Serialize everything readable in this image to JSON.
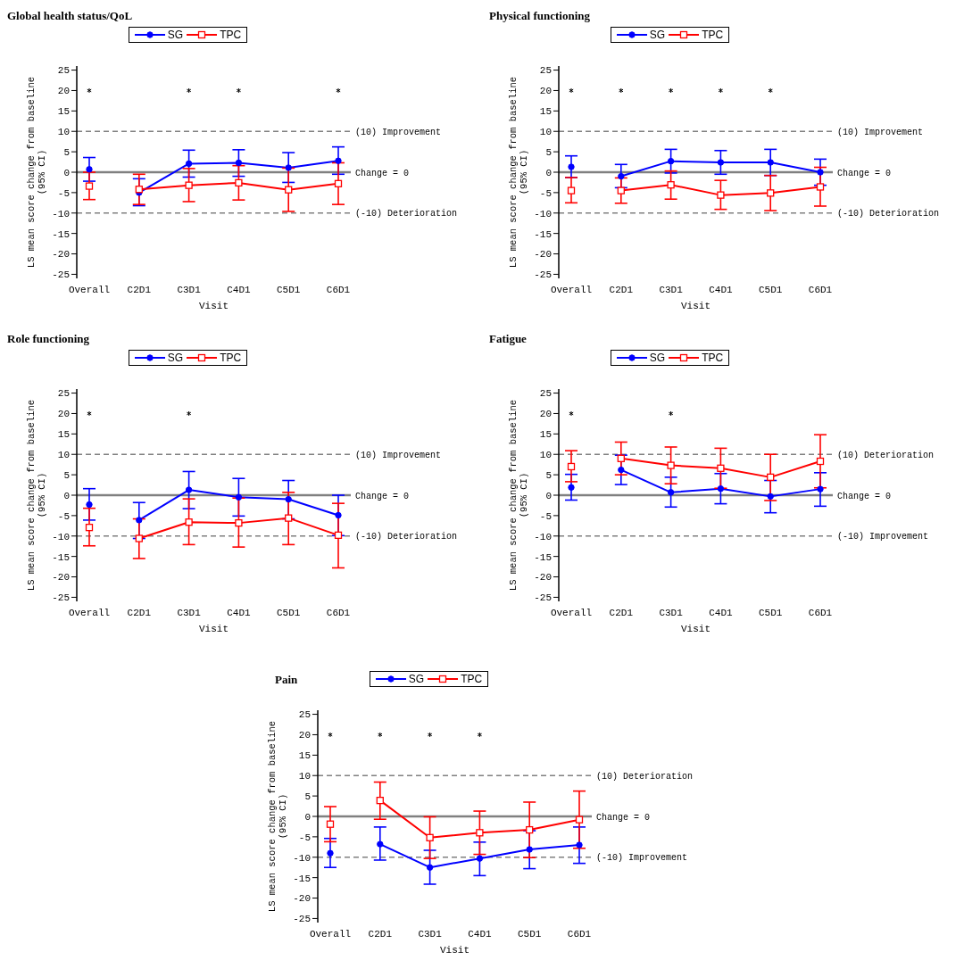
{
  "chart_data": [
    {
      "type": "line",
      "title": "Global health status/QoL",
      "xlabel": "Visit",
      "ylabel": "LS mean score change from baseline\n(95% CI)",
      "categories": [
        "Overall",
        "C2D1",
        "C3D1",
        "C4D1",
        "C5D1",
        "C6D1"
      ],
      "ylim": [
        -26,
        26
      ],
      "yticks": [
        -25,
        -20,
        -15,
        -10,
        -5,
        0,
        5,
        10,
        15,
        20,
        25
      ],
      "legend": "top",
      "grid": false,
      "series": [
        {
          "name": "SG",
          "type": "line",
          "color": "#0000ff",
          "marker": "circle",
          "values": [
            null,
            -5.0,
            2.1,
            2.3,
            1.1,
            2.8
          ],
          "errors": [
            null,
            [
              -8.2,
              -1.6
            ],
            [
              -1.2,
              5.4
            ],
            [
              -1.0,
              5.5
            ],
            [
              -2.5,
              4.8
            ],
            [
              -0.5,
              6.2
            ]
          ]
        },
        {
          "name": "TPC",
          "type": "line",
          "color": "#ff0000",
          "marker": "square",
          "values": [
            null,
            -4.2,
            -3.2,
            -2.6,
            -4.3,
            -2.8
          ],
          "errors": [
            null,
            [
              -7.9,
              -0.5
            ],
            [
              -7.2,
              0.9
            ],
            [
              -6.8,
              1.6
            ],
            [
              -9.6,
              1.0
            ],
            [
              -7.9,
              2.3
            ]
          ]
        },
        {
          "type": "scatter",
          "color": "#0000ff",
          "marker": "circle",
          "values": [
            0.7,
            null,
            null,
            null,
            null,
            null
          ],
          "errors": [
            [
              -2.2,
              3.6
            ],
            null,
            null,
            null,
            null,
            null
          ]
        },
        {
          "type": "scatter",
          "color": "#ff0000",
          "marker": "square",
          "values": [
            -3.4,
            null,
            null,
            null,
            null,
            null
          ],
          "errors": [
            [
              -6.7,
              0
            ],
            null,
            null,
            null,
            null,
            null
          ]
        },
        {
          "type": "scatter",
          "color": "#000000",
          "marker": "cross",
          "values": [
            20,
            null,
            20,
            20,
            null,
            20
          ]
        }
      ],
      "ref_lines": [
        {
          "axis": "y",
          "value": 10,
          "label": "(10) Improvement",
          "color": "#808080",
          "line_style": "dashed"
        },
        {
          "axis": "y",
          "value": 0,
          "label": "Change = 0",
          "color": "#808080",
          "line_style": "solid"
        },
        {
          "axis": "y",
          "value": -10,
          "label": "(-10) Deterioration",
          "color": "#808080",
          "line_style": "dashed"
        }
      ]
    },
    {
      "type": "line",
      "title": "Physical functioning",
      "xlabel": "Visit",
      "ylabel": "LS mean score change from baseline\n(95% CI)",
      "categories": [
        "Overall",
        "C2D1",
        "C3D1",
        "C4D1",
        "C5D1",
        "C6D1"
      ],
      "ylim": [
        -26,
        26
      ],
      "yticks": [
        -25,
        -20,
        -15,
        -10,
        -5,
        0,
        5,
        10,
        15,
        20,
        25
      ],
      "legend": "top",
      "grid": false,
      "series": [
        {
          "name": "SG",
          "type": "line",
          "color": "#0000ff",
          "marker": "circle",
          "values": [
            null,
            -1.0,
            2.7,
            2.4,
            2.4,
            0
          ],
          "errors": [
            null,
            [
              -3.8,
              1.9
            ],
            [
              -0.2,
              5.6
            ],
            [
              -0.5,
              5.3
            ],
            [
              -0.8,
              5.6
            ],
            [
              -3.2,
              3.2
            ]
          ]
        },
        {
          "name": "TPC",
          "type": "line",
          "color": "#ff0000",
          "marker": "square",
          "values": [
            null,
            -4.5,
            -3.1,
            -5.6,
            -5.1,
            -3.6
          ],
          "errors": [
            null,
            [
              -7.6,
              -1.4
            ],
            [
              -6.6,
              0.3
            ],
            [
              -9.1,
              -2.0
            ],
            [
              -9.4,
              -0.8
            ],
            [
              -8.3,
              1.2
            ]
          ]
        },
        {
          "type": "scatter",
          "color": "#0000ff",
          "marker": "circle",
          "values": [
            1.3,
            null,
            null,
            null,
            null,
            null
          ],
          "errors": [
            [
              -1.3,
              4.0
            ],
            null,
            null,
            null,
            null,
            null
          ]
        },
        {
          "type": "scatter",
          "color": "#ff0000",
          "marker": "square",
          "values": [
            -4.5,
            null,
            null,
            null,
            null,
            null
          ],
          "errors": [
            [
              -7.5,
              -1.3
            ],
            null,
            null,
            null,
            null,
            null
          ]
        },
        {
          "type": "scatter",
          "color": "#000000",
          "marker": "cross",
          "values": [
            20,
            20,
            20,
            20,
            20,
            null
          ]
        }
      ],
      "ref_lines": [
        {
          "axis": "y",
          "value": 10,
          "label": "(10) Improvement",
          "color": "#808080",
          "line_style": "dashed"
        },
        {
          "axis": "y",
          "value": 0,
          "label": "Change = 0",
          "color": "#808080",
          "line_style": "solid"
        },
        {
          "axis": "y",
          "value": -10,
          "label": "(-10) Deterioration",
          "color": "#808080",
          "line_style": "dashed"
        }
      ]
    },
    {
      "type": "line",
      "title": "Role functioning",
      "xlabel": "Visit",
      "ylabel": "LS mean score change from baseline\n(95% CI)",
      "categories": [
        "Overall",
        "C2D1",
        "C3D1",
        "C4D1",
        "C5D1",
        "C6D1"
      ],
      "ylim": [
        -26,
        26
      ],
      "yticks": [
        -25,
        -20,
        -15,
        -10,
        -5,
        0,
        5,
        10,
        15,
        20,
        25
      ],
      "legend": "top",
      "grid": false,
      "series": [
        {
          "name": "SG",
          "type": "line",
          "color": "#0000ff",
          "marker": "circle",
          "values": [
            null,
            -6.1,
            1.3,
            -0.5,
            -1.0,
            -4.9
          ],
          "errors": [
            null,
            [
              -10.6,
              -1.8
            ],
            [
              -3.3,
              5.8
            ],
            [
              -5.1,
              4.1
            ],
            [
              -5.8,
              3.6
            ],
            [
              -9.9,
              0
            ]
          ]
        },
        {
          "name": "TPC",
          "type": "line",
          "color": "#ff0000",
          "marker": "square",
          "values": [
            null,
            -10.6,
            -6.6,
            -6.8,
            -5.6,
            -9.8
          ],
          "errors": [
            null,
            [
              -15.5,
              -5.8
            ],
            [
              -12.1,
              -0.9
            ],
            [
              -12.7,
              -0.7
            ],
            [
              -12.1,
              0.7
            ],
            [
              -17.8,
              -2.0
            ]
          ]
        },
        {
          "type": "scatter",
          "color": "#0000ff",
          "marker": "circle",
          "values": [
            -2.3,
            null,
            null,
            null,
            null,
            null
          ],
          "errors": [
            [
              -6.1,
              1.6
            ],
            null,
            null,
            null,
            null,
            null
          ]
        },
        {
          "type": "scatter",
          "color": "#ff0000",
          "marker": "square",
          "values": [
            -7.9,
            null,
            null,
            null,
            null,
            null
          ],
          "errors": [
            [
              -12.4,
              -3.2
            ],
            null,
            null,
            null,
            null,
            null
          ]
        },
        {
          "type": "scatter",
          "color": "#000000",
          "marker": "cross",
          "values": [
            20,
            null,
            20,
            null,
            null,
            null
          ]
        }
      ],
      "ref_lines": [
        {
          "axis": "y",
          "value": 10,
          "label": "(10) Improvement",
          "color": "#808080",
          "line_style": "dashed"
        },
        {
          "axis": "y",
          "value": 0,
          "label": "Change = 0",
          "color": "#808080",
          "line_style": "solid"
        },
        {
          "axis": "y",
          "value": -10,
          "label": "(-10) Deterioration",
          "color": "#808080",
          "line_style": "dashed"
        }
      ]
    },
    {
      "type": "line",
      "title": "Fatigue",
      "xlabel": "Visit",
      "ylabel": "LS mean score change from baseline\n(95% CI)",
      "categories": [
        "Overall",
        "C2D1",
        "C3D1",
        "C4D1",
        "C5D1",
        "C6D1"
      ],
      "ylim": [
        -26,
        26
      ],
      "yticks": [
        -25,
        -20,
        -15,
        -10,
        -5,
        0,
        5,
        10,
        15,
        20,
        25
      ],
      "legend": "top",
      "grid": false,
      "series": [
        {
          "name": "SG",
          "type": "line",
          "color": "#0000ff",
          "marker": "circle",
          "values": [
            null,
            6.2,
            0.7,
            1.6,
            -0.3,
            1.5
          ],
          "errors": [
            null,
            [
              2.6,
              9.8
            ],
            [
              -2.9,
              4.4
            ],
            [
              -2.1,
              5.3
            ],
            [
              -4.3,
              3.6
            ],
            [
              -2.7,
              5.5
            ]
          ]
        },
        {
          "name": "TPC",
          "type": "line",
          "color": "#ff0000",
          "marker": "square",
          "values": [
            null,
            9.0,
            7.3,
            6.6,
            4.4,
            8.3
          ],
          "errors": [
            null,
            [
              5.0,
              13.0
            ],
            [
              2.8,
              11.8
            ],
            [
              1.7,
              11.5
            ],
            [
              -1.3,
              10.0
            ],
            [
              1.8,
              14.8
            ]
          ]
        },
        {
          "type": "scatter",
          "color": "#0000ff",
          "marker": "circle",
          "values": [
            1.9,
            null,
            null,
            null,
            null,
            null
          ],
          "errors": [
            [
              -1.2,
              5.1
            ],
            null,
            null,
            null,
            null,
            null
          ]
        },
        {
          "type": "scatter",
          "color": "#ff0000",
          "marker": "square",
          "values": [
            7.0,
            null,
            null,
            null,
            null,
            null
          ],
          "errors": [
            [
              3.3,
              10.9
            ],
            null,
            null,
            null,
            null,
            null
          ]
        },
        {
          "type": "scatter",
          "color": "#000000",
          "marker": "cross",
          "values": [
            20,
            null,
            20,
            null,
            null,
            null
          ]
        }
      ],
      "ref_lines": [
        {
          "axis": "y",
          "value": 10,
          "label": "(10) Deterioration",
          "color": "#808080",
          "line_style": "dashed"
        },
        {
          "axis": "y",
          "value": 0,
          "label": "Change = 0",
          "color": "#808080",
          "line_style": "solid"
        },
        {
          "axis": "y",
          "value": -10,
          "label": "(-10) Improvement",
          "color": "#808080",
          "line_style": "dashed"
        }
      ]
    },
    {
      "type": "line",
      "title": "Pain",
      "xlabel": "Visit",
      "ylabel": "LS mean score change from baseline\n(95% CI)",
      "categories": [
        "Overall",
        "C2D1",
        "C3D1",
        "C4D1",
        "C5D1",
        "C6D1"
      ],
      "ylim": [
        -26,
        26
      ],
      "yticks": [
        -25,
        -20,
        -15,
        -10,
        -5,
        0,
        5,
        10,
        15,
        20,
        25
      ],
      "legend": "top",
      "grid": false,
      "series": [
        {
          "name": "SG",
          "type": "line",
          "color": "#0000ff",
          "marker": "circle",
          "values": [
            null,
            -6.8,
            -12.5,
            -10.3,
            -8.1,
            -7.0
          ],
          "errors": [
            null,
            [
              -10.7,
              -2.6
            ],
            [
              -16.6,
              -8.3
            ],
            [
              -14.5,
              -6.3
            ],
            [
              -12.8,
              -3.5
            ],
            [
              -11.5,
              -2.6
            ]
          ]
        },
        {
          "name": "TPC",
          "type": "line",
          "color": "#ff0000",
          "marker": "square",
          "values": [
            null,
            3.9,
            -5.2,
            -4.0,
            -3.3,
            -0.8
          ],
          "errors": [
            null,
            [
              -0.7,
              8.4
            ],
            [
              -10.3,
              -0.1
            ],
            [
              -9.3,
              1.3
            ],
            [
              -10.1,
              3.5
            ],
            [
              -7.8,
              6.2
            ]
          ]
        },
        {
          "type": "scatter",
          "color": "#0000ff",
          "marker": "circle",
          "values": [
            -9.0,
            null,
            null,
            null,
            null,
            null
          ],
          "errors": [
            [
              -12.5,
              -5.4
            ],
            null,
            null,
            null,
            null,
            null
          ]
        },
        {
          "type": "scatter",
          "color": "#ff0000",
          "marker": "square",
          "values": [
            -1.9,
            null,
            null,
            null,
            null,
            null
          ],
          "errors": [
            [
              -6.2,
              2.4
            ],
            null,
            null,
            null,
            null,
            null
          ]
        },
        {
          "type": "scatter",
          "color": "#000000",
          "marker": "cross",
          "values": [
            20,
            20,
            20,
            20,
            null,
            null
          ]
        }
      ],
      "ref_lines": [
        {
          "axis": "y",
          "value": 10,
          "label": "(10) Deterioration",
          "color": "#808080",
          "line_style": "dashed"
        },
        {
          "axis": "y",
          "value": 0,
          "label": "Change = 0",
          "color": "#808080",
          "line_style": "solid"
        },
        {
          "axis": "y",
          "value": -10,
          "label": "(-10) Improvement",
          "color": "#808080",
          "line_style": "dashed"
        }
      ]
    }
  ]
}
